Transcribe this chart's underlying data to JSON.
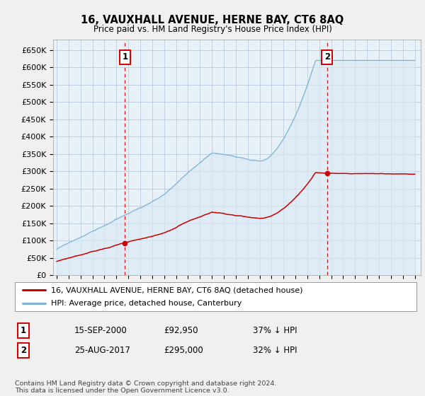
{
  "title": "16, VAUXHALL AVENUE, HERNE BAY, CT6 8AQ",
  "subtitle": "Price paid vs. HM Land Registry's House Price Index (HPI)",
  "ylim": [
    0,
    680000
  ],
  "yticks": [
    0,
    50000,
    100000,
    150000,
    200000,
    250000,
    300000,
    350000,
    400000,
    450000,
    500000,
    550000,
    600000,
    650000
  ],
  "hpi_color": "#7ab3d4",
  "hpi_fill_color": "#daeaf4",
  "price_color": "#cc0000",
  "vline_color": "#cc0000",
  "transaction1_x": 2000.71,
  "transaction1_price": 92950,
  "transaction2_x": 2017.65,
  "transaction2_price": 295000,
  "legend_entry1": "16, VAUXHALL AVENUE, HERNE BAY, CT6 8AQ (detached house)",
  "legend_entry2": "HPI: Average price, detached house, Canterbury",
  "table_row1": [
    "1",
    "15-SEP-2000",
    "£92,950",
    "37% ↓ HPI"
  ],
  "table_row2": [
    "2",
    "25-AUG-2017",
    "£295,000",
    "32% ↓ HPI"
  ],
  "footnote": "Contains HM Land Registry data © Crown copyright and database right 2024.\nThis data is licensed under the Open Government Licence v3.0.",
  "background_color": "#f0f0f0",
  "plot_background": "#e8f0f8",
  "grid_color": "#b0c4d8"
}
